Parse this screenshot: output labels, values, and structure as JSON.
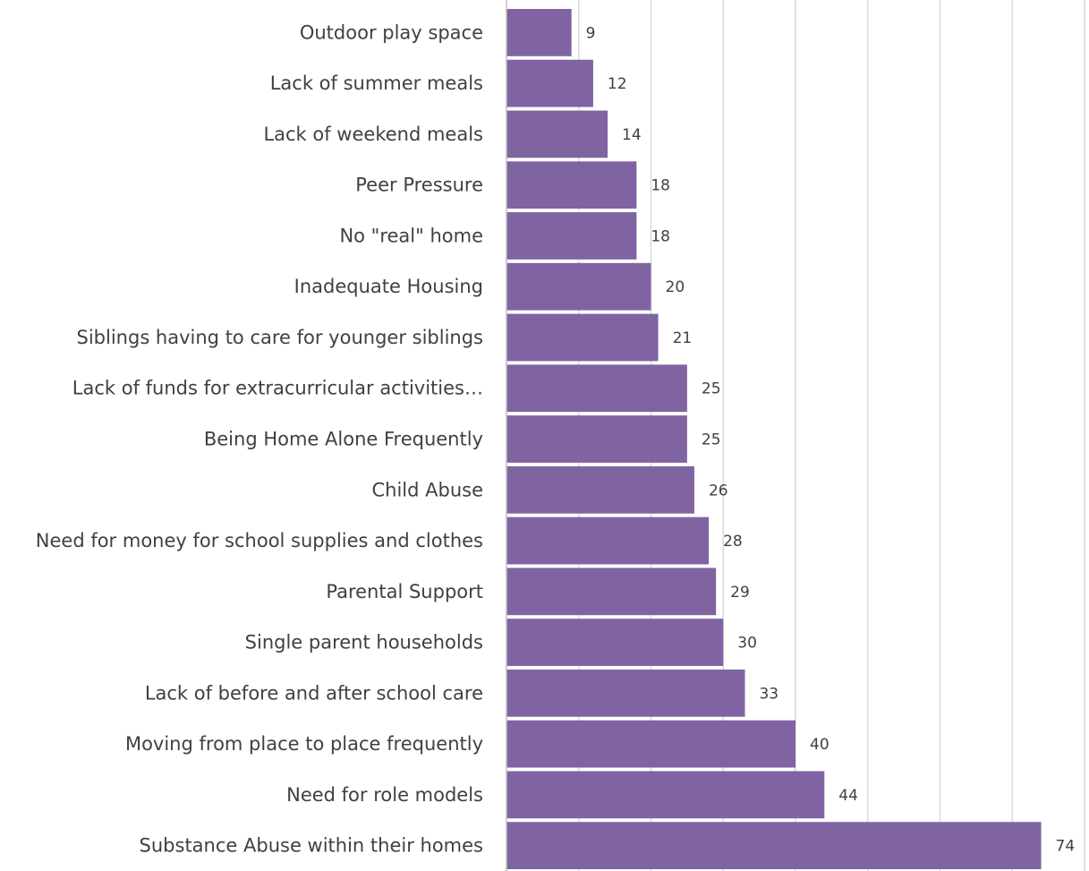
{
  "chart_data": {
    "type": "bar",
    "orientation": "horizontal",
    "categories": [
      "Outdoor play space",
      "Lack of summer meals",
      "Lack of weekend meals",
      "Peer Pressure",
      "No \"real\" home",
      "Inadequate Housing",
      "Siblings having to care for younger siblings",
      "Lack of funds  for extracurricular activities…",
      "Being Home Alone Frequently",
      "Child Abuse",
      "Need for money for school supplies and clothes",
      "Parental Support",
      "Single parent households",
      "Lack of before and after school care",
      "Moving from place to place frequently",
      "Need for role models",
      "Substance Abuse within their homes"
    ],
    "values": [
      9,
      12,
      14,
      18,
      18,
      20,
      21,
      25,
      25,
      26,
      28,
      29,
      30,
      33,
      40,
      44,
      74
    ],
    "xlim": [
      0,
      80
    ],
    "grid": true,
    "color": "#8064a2",
    "data_labels": true,
    "title": "",
    "xlabel": "",
    "ylabel": ""
  }
}
